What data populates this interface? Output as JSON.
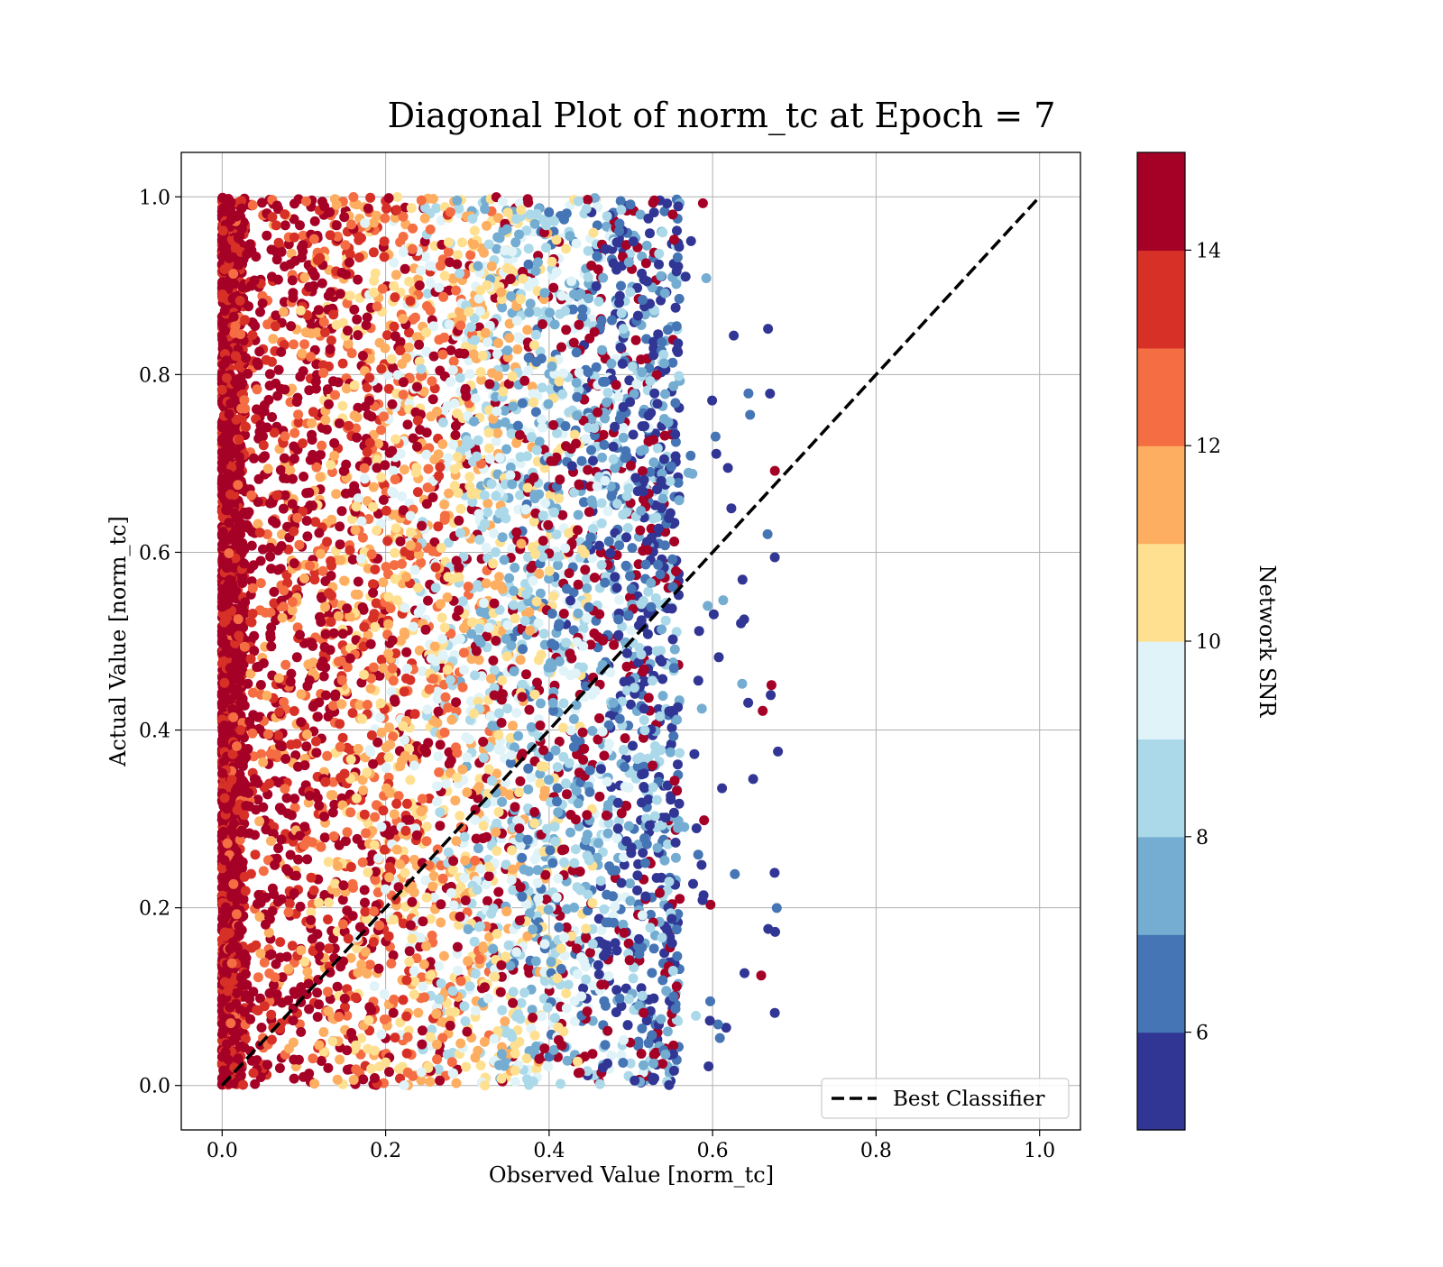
{
  "chart_data": {
    "type": "scatter",
    "title": "Diagonal Plot of norm_tc at Epoch = 7",
    "xlabel": "Observed Value [norm_tc]",
    "ylabel": "Actual Value [norm_tc]",
    "xlim": [
      -0.05,
      1.05
    ],
    "ylim": [
      -0.05,
      1.05
    ],
    "xticks": [
      0.0,
      0.2,
      0.4,
      0.6,
      0.8,
      1.0
    ],
    "xtick_labels": [
      "0.0",
      "0.2",
      "0.4",
      "0.6",
      "0.8",
      "1.0"
    ],
    "yticks": [
      0.0,
      0.2,
      0.4,
      0.6,
      0.8,
      1.0
    ],
    "ytick_labels": [
      "0.0",
      "0.2",
      "0.4",
      "0.6",
      "0.8",
      "1.0"
    ],
    "grid": true,
    "legend": {
      "position": "lower-right",
      "entries": [
        "Best Classifier"
      ]
    },
    "reference_line": {
      "name": "Best Classifier",
      "x": [
        0.0,
        1.0
      ],
      "y": [
        0.0,
        1.0
      ],
      "style": "dashed",
      "color": "#000000"
    },
    "scatter_summary": {
      "x_range": [
        0.0,
        0.68
      ],
      "y_range": [
        0.0,
        1.0
      ],
      "color_by": "Network SNR",
      "trend": "high-SNR points cluster near observed 0; lower-SNR points extend toward observed 0.4-0.6"
    },
    "colorbar": {
      "label": "Network SNR",
      "range": [
        5,
        15
      ],
      "ticks": [
        6,
        8,
        10,
        12,
        14
      ],
      "tick_labels": [
        "6",
        "8",
        "10",
        "12",
        "14"
      ],
      "bins": [
        {
          "from": 5,
          "to": 6,
          "color": "#313695"
        },
        {
          "from": 6,
          "to": 7,
          "color": "#4575b4"
        },
        {
          "from": 7,
          "to": 8,
          "color": "#74add1"
        },
        {
          "from": 8,
          "to": 9,
          "color": "#abd9e9"
        },
        {
          "from": 9,
          "to": 10,
          "color": "#e0f3f8"
        },
        {
          "from": 10,
          "to": 11,
          "color": "#fee090"
        },
        {
          "from": 11,
          "to": 12,
          "color": "#fdae61"
        },
        {
          "from": 12,
          "to": 13,
          "color": "#f46d43"
        },
        {
          "from": 13,
          "to": 14,
          "color": "#d73027"
        },
        {
          "from": 14,
          "to": 15,
          "color": "#a50026"
        }
      ]
    }
  }
}
